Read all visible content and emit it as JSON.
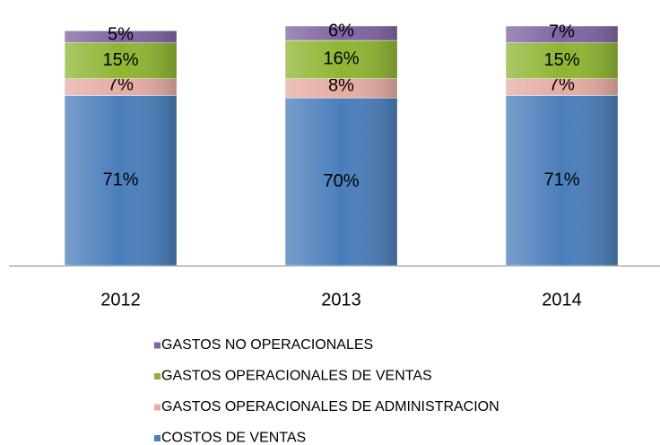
{
  "chart_data": {
    "type": "stacked_bar",
    "categories": [
      "2012",
      "2013",
      "2014"
    ],
    "series": [
      {
        "name": "COSTOS DE VENTAS",
        "color": "#4a7ebb",
        "values": [
          71,
          70,
          71
        ],
        "value_labels": [
          "71%",
          "70%",
          "71%"
        ]
      },
      {
        "name": "GASTOS OPERACIONALES DE ADMINISTRACION",
        "color": "#e6aca4",
        "values": [
          7,
          8,
          7
        ],
        "value_labels": [
          "7%",
          "8%",
          "7%"
        ]
      },
      {
        "name": "GASTOS OPERACIONALES DE VENTAS",
        "color": "#8fb532",
        "values": [
          15,
          16,
          15
        ],
        "value_labels": [
          "15%",
          "16%",
          "15%"
        ]
      },
      {
        "name": "GASTOS NO OPERACIONALES",
        "color": "#8064a2",
        "values": [
          5,
          6,
          7
        ],
        "value_labels": [
          "5%",
          "6%",
          "7%"
        ]
      }
    ]
  }
}
